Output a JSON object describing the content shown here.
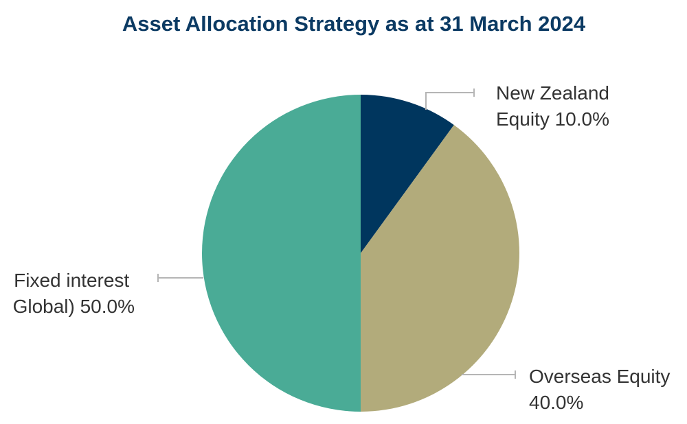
{
  "chart_data": {
    "type": "pie",
    "title": "Asset Allocation Strategy as at 31 March 2024",
    "slices": [
      {
        "label_lines": [
          "New Zealand",
          "Equity 10.0%"
        ],
        "value": 10.0,
        "color": "#00365e"
      },
      {
        "label_lines": [
          "Overseas Equity",
          "40.0%"
        ],
        "value": 40.0,
        "color": "#b2ab7b"
      },
      {
        "label_lines": [
          "Fixed interest",
          "Global) 50.0%"
        ],
        "value": 50.0,
        "color": "#4aab96"
      }
    ],
    "start_angle": "12 o'clock",
    "direction": "clockwise",
    "legend": "none"
  }
}
